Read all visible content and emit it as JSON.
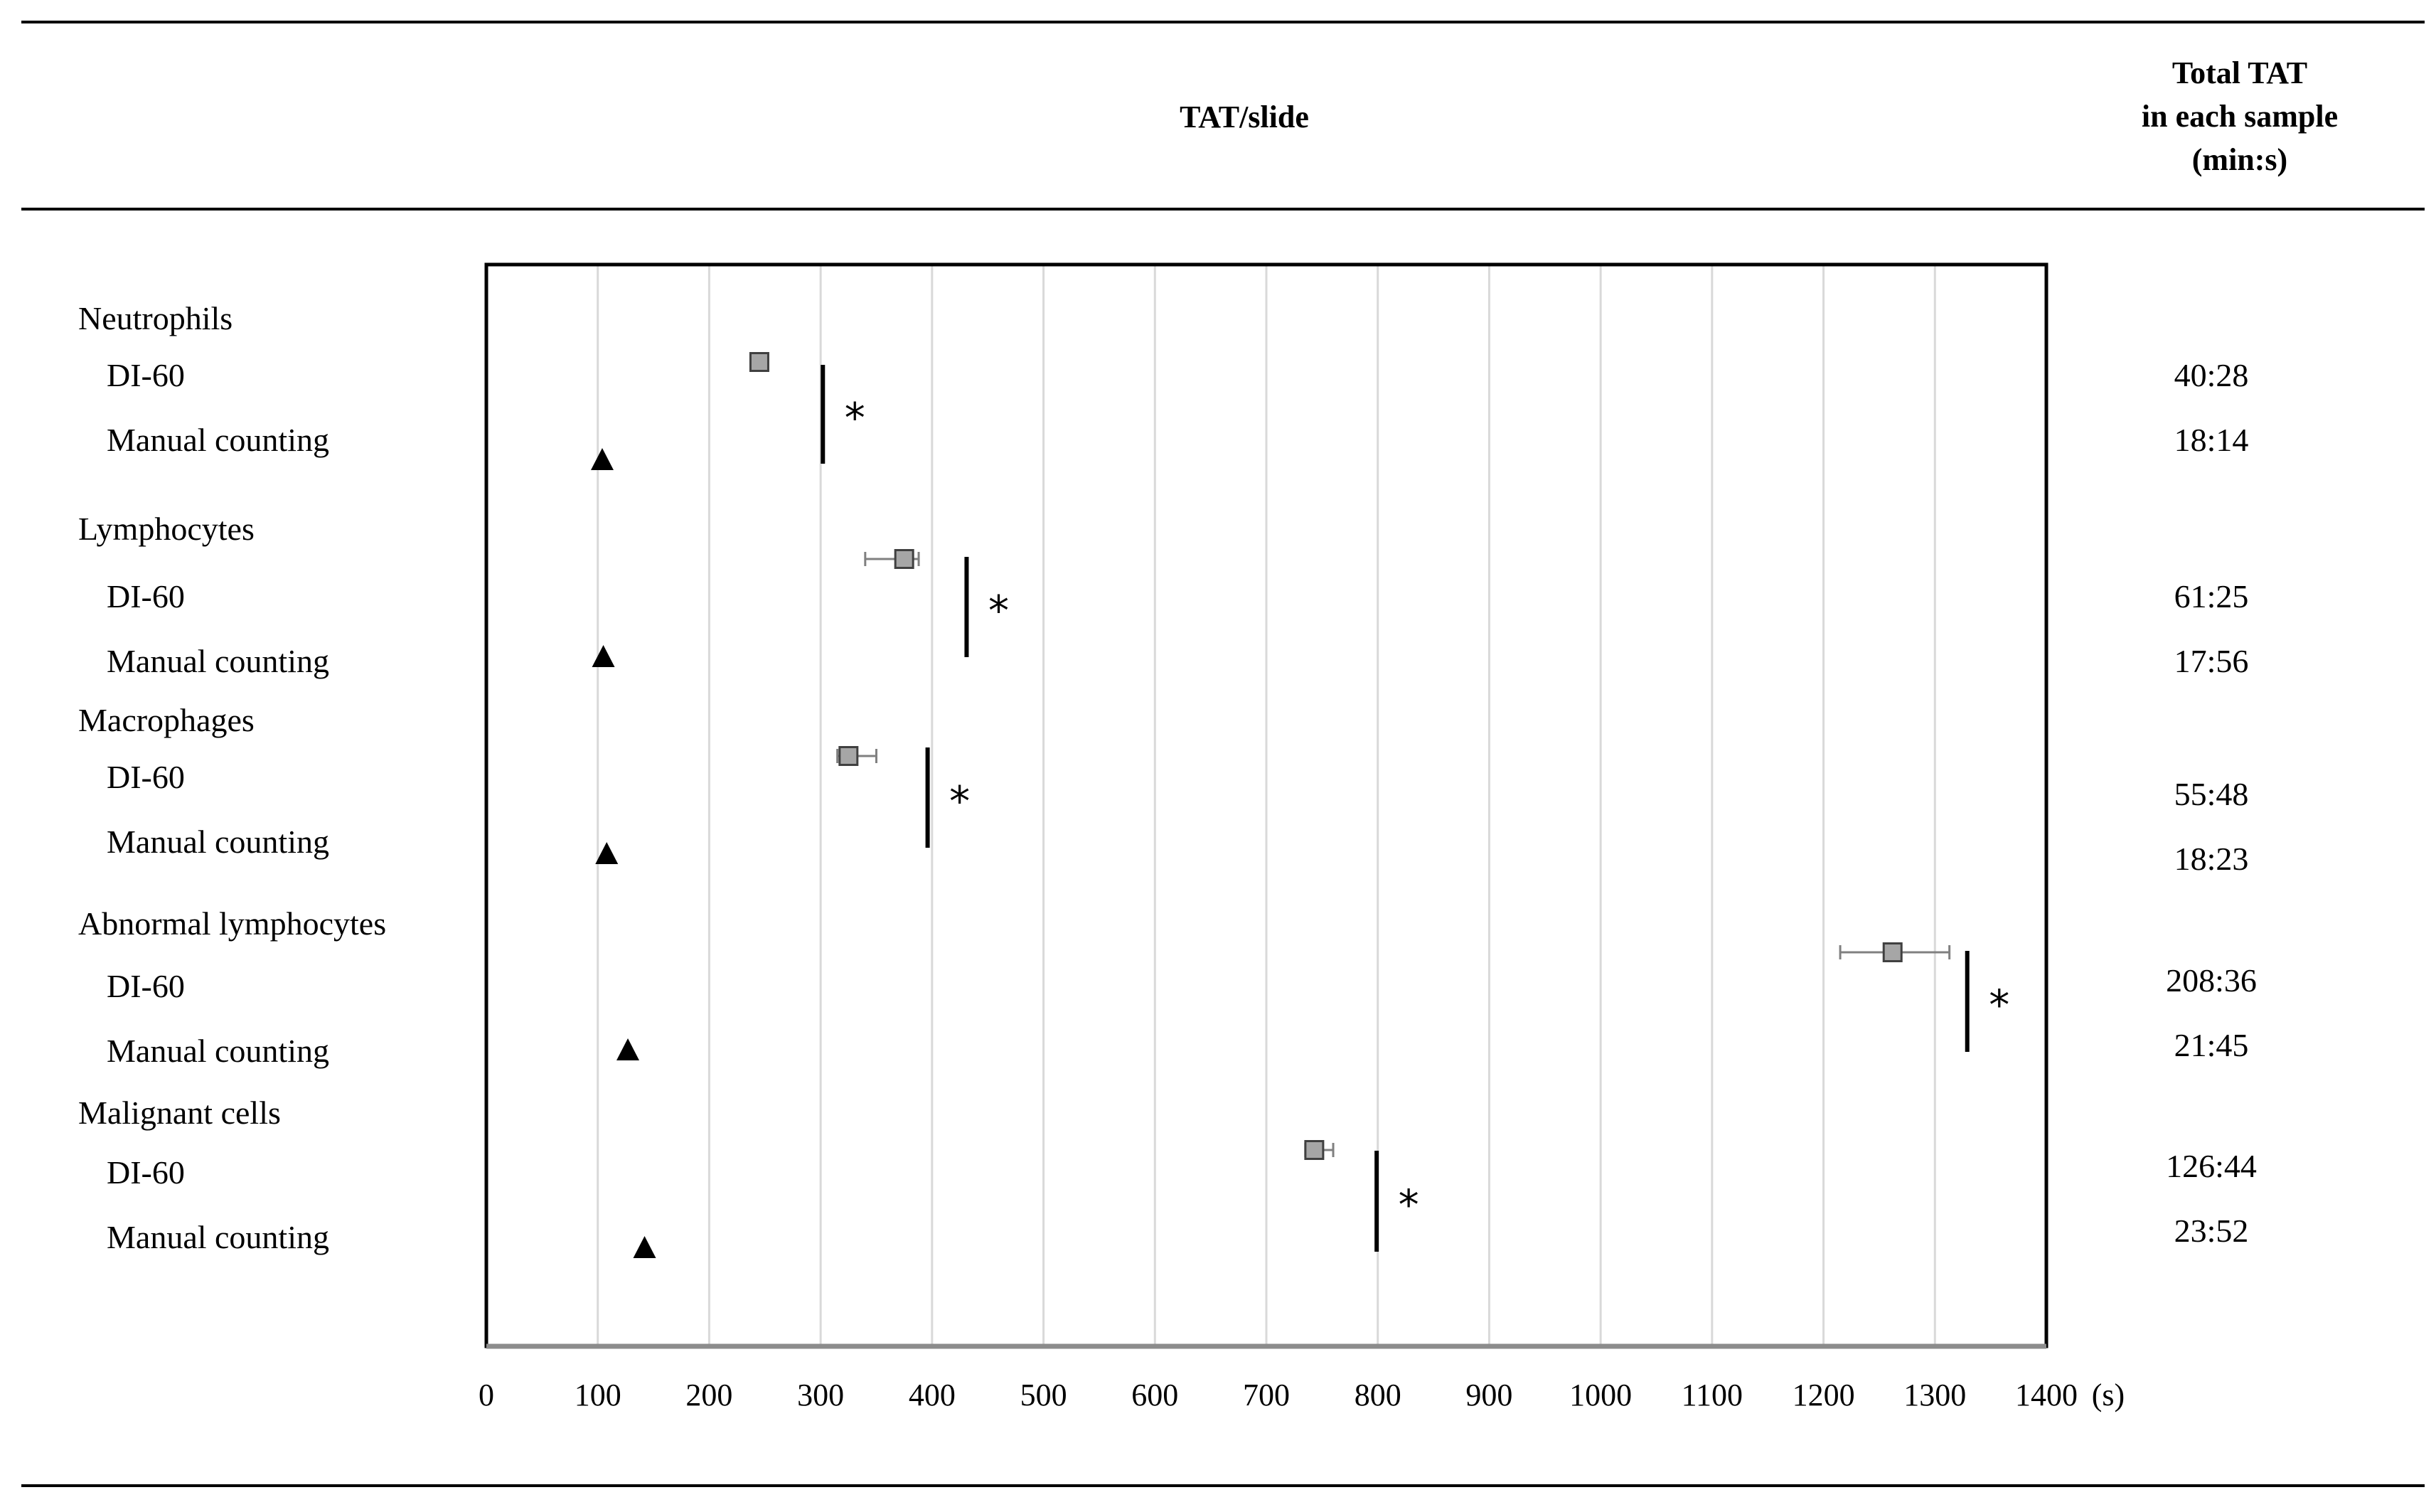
{
  "header": {
    "tat_per_slide": "TAT/slide",
    "total_tat": [
      "Total TAT",
      "in each sample",
      "(min:s)"
    ]
  },
  "rows": [
    {
      "group": "Neutrophils",
      "di_label": "DI-60",
      "manual_label": "Manual counting",
      "di_total": "40:28",
      "manual_total": "18:14"
    },
    {
      "group": "Lymphocytes",
      "di_label": "DI-60",
      "manual_label": "Manual counting",
      "di_total": "61:25",
      "manual_total": "17:56"
    },
    {
      "group": "Macrophages",
      "di_label": "DI-60",
      "manual_label": "Manual counting",
      "di_total": "55:48",
      "manual_total": "18:23"
    },
    {
      "group": "Abnormal lymphocytes",
      "di_label": "DI-60",
      "manual_label": "Manual counting",
      "di_total": "208:36",
      "manual_total": "21:45"
    },
    {
      "group": "Malignant cells",
      "di_label": "DI-60",
      "manual_label": "Manual counting",
      "di_total": "126:44",
      "manual_total": "23:52"
    }
  ],
  "chart_data": {
    "type": "scatter",
    "xlabel": "",
    "x_unit": "(s)",
    "xlim": [
      0,
      1400
    ],
    "x_ticks": [
      0,
      100,
      200,
      300,
      400,
      500,
      600,
      700,
      800,
      900,
      1000,
      1100,
      1200,
      1300,
      1400
    ],
    "grid": "vertical",
    "significance_mark": "*",
    "categories": [
      "Neutrophils",
      "Lymphocytes",
      "Macrophages",
      "Abnormal lymphocytes",
      "Malignant cells"
    ],
    "series": [
      {
        "name": "DI-60",
        "marker": "square",
        "color": "#a6a6a6",
        "values": [
          245,
          375,
          325,
          1262,
          743
        ],
        "error_low": [
          240,
          340,
          315,
          1215,
          735
        ],
        "error_high": [
          250,
          388,
          350,
          1313,
          760
        ]
      },
      {
        "name": "Manual counting",
        "marker": "triangle",
        "color": "#000000",
        "values": [
          104,
          105,
          108,
          127,
          142
        ]
      }
    ],
    "significance_x": [
      302,
      431,
      396,
      1329,
      799
    ]
  }
}
